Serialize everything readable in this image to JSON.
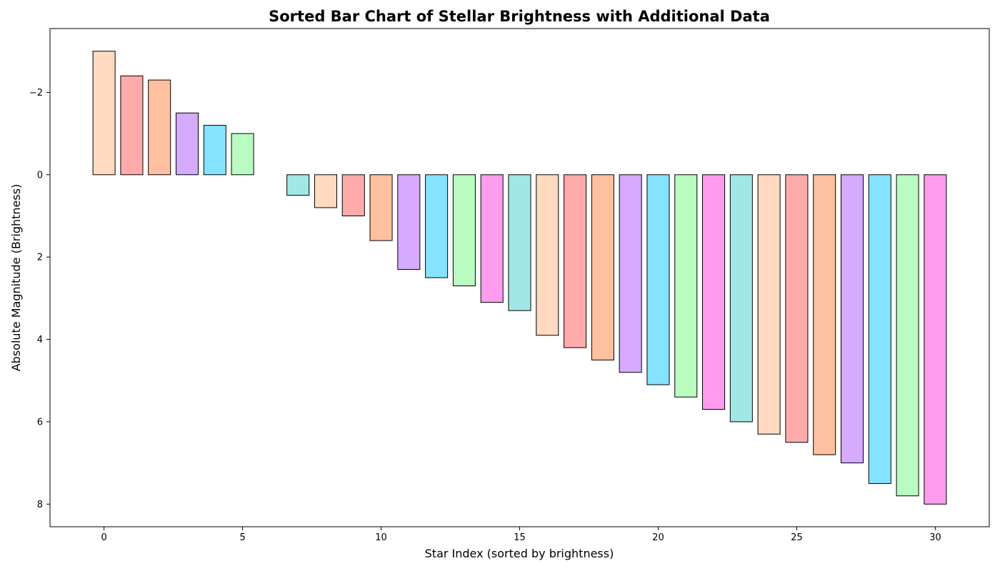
{
  "chart_data": {
    "type": "bar",
    "title": "Sorted Bar Chart of Stellar Brightness with Additional Data",
    "xlabel": "Star Index (sorted by brightness)",
    "ylabel": "Absolute Magnitude (Brightness)",
    "y_inverted": true,
    "xlim": [
      -1.95,
      31.95
    ],
    "ylim": [
      8.55,
      -3.55
    ],
    "x_ticks": [
      0,
      5,
      10,
      15,
      20,
      25,
      30
    ],
    "y_ticks": [
      -2,
      0,
      2,
      4,
      6,
      8
    ],
    "y_tick_labels": [
      "−2",
      "0",
      "2",
      "4",
      "6",
      "8"
    ],
    "grid": false,
    "legend": "none",
    "bar_edge_color": "#000000",
    "palette": [
      "#FFDAC1",
      "#FFABAB",
      "#FFC09F",
      "#D5AAFF",
      "#85E3FF",
      "#B9FBC0",
      "#FF9CEE",
      "#A0E7E5"
    ],
    "x": [
      0,
      1,
      2,
      3,
      4,
      5,
      6,
      7,
      8,
      9,
      10,
      11,
      12,
      13,
      14,
      15,
      16,
      17,
      18,
      19,
      20,
      21,
      22,
      23,
      24,
      25,
      26,
      27,
      28,
      29,
      30
    ],
    "values": [
      -3.0,
      -2.4,
      -2.3,
      -1.5,
      -1.2,
      -1.0,
      0.0,
      0.5,
      0.8,
      1.0,
      1.6,
      2.3,
      2.5,
      2.7,
      3.1,
      3.3,
      3.9,
      4.2,
      4.5,
      4.8,
      5.1,
      5.4,
      5.7,
      6.0,
      6.3,
      6.5,
      6.8,
      7.0,
      7.5,
      7.8,
      8.0
    ],
    "colors": [
      "#FFDAC1",
      "#FFABAB",
      "#FFC09F",
      "#D5AAFF",
      "#85E3FF",
      "#B9FBC0",
      "#FF9CEE",
      "#A0E7E5",
      "#FFDAC1",
      "#FFABAB",
      "#FFC09F",
      "#D5AAFF",
      "#85E3FF",
      "#B9FBC0",
      "#FF9CEE",
      "#A0E7E5",
      "#FFDAC1",
      "#FFABAB",
      "#FFC09F",
      "#D5AAFF",
      "#85E3FF",
      "#B9FBC0",
      "#FF9CEE",
      "#A0E7E5",
      "#FFDAC1",
      "#FFABAB",
      "#FFC09F",
      "#D5AAFF",
      "#85E3FF",
      "#B9FBC0",
      "#FF9CEE"
    ]
  }
}
